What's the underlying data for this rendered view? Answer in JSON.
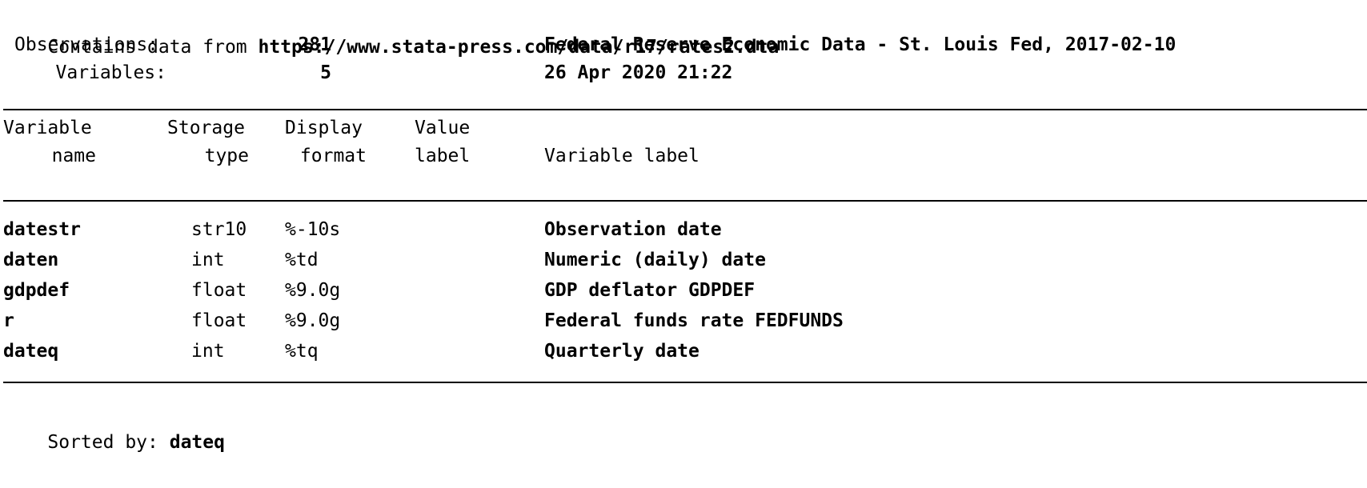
{
  "header": {
    "contains_prefix": "Contains data from ",
    "source_url": "https://www.stata-press.com/data/r17/rates2.dta",
    "observations_label": "Observations:",
    "observations_value": "281",
    "dataset_label": "Federal Reserve Economic Data - St. Louis Fed, 2017-02-10",
    "variables_label": "Variables:",
    "variables_value": "5",
    "timestamp": "26 Apr 2020 21:22"
  },
  "columns": {
    "variable_top": "Variable",
    "variable_bottom": "name",
    "storage_top": "Storage",
    "storage_bottom": "type",
    "display_top": "Display",
    "display_bottom": "format",
    "value_top": "Value",
    "value_bottom": "label",
    "varlabel": "Variable label"
  },
  "rows": [
    {
      "name": "datestr",
      "type": "str10",
      "format": "%-10s",
      "value_label": "",
      "label": "Observation date"
    },
    {
      "name": "daten",
      "type": "int",
      "format": "%td",
      "value_label": "",
      "label": "Numeric (daily) date"
    },
    {
      "name": "gdpdef",
      "type": "float",
      "format": "%9.0g",
      "value_label": "",
      "label": "GDP deflator GDPDEF"
    },
    {
      "name": "r",
      "type": "float",
      "format": "%9.0g",
      "value_label": "",
      "label": "Federal funds rate FEDFUNDS"
    },
    {
      "name": "dateq",
      "type": "int",
      "format": "%tq",
      "value_label": "",
      "label": "Quarterly date"
    }
  ],
  "footer": {
    "sorted_label": "Sorted by:",
    "sorted_value": "dateq"
  }
}
